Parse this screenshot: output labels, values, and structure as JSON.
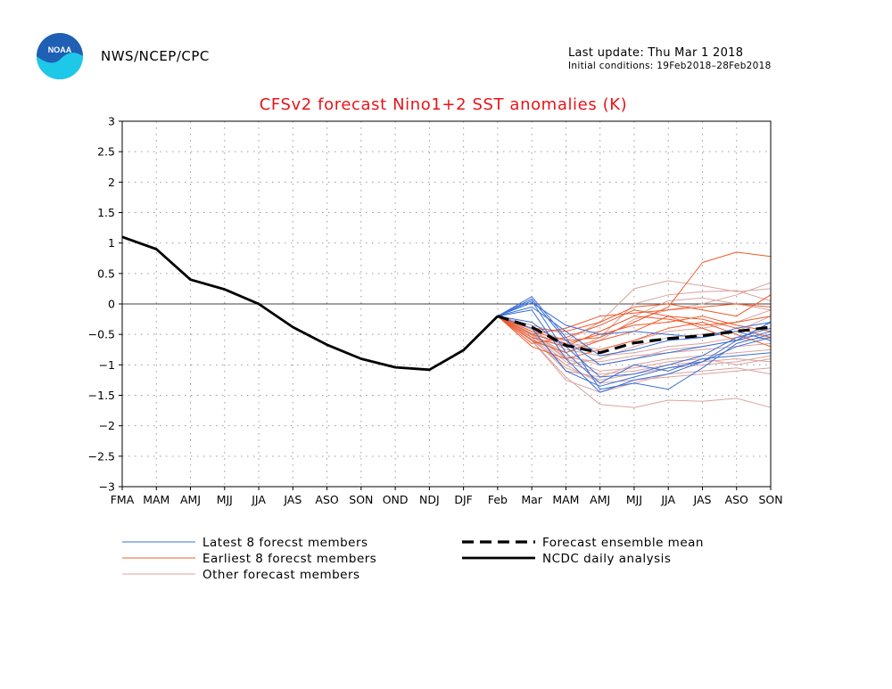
{
  "header": {
    "agency": "NWS/NCEP/CPC",
    "last_update": "Last update: Thu Mar 1 2018",
    "initial_conditions": "Initial conditions: 19Feb2018–28Feb2018",
    "logo_text": "NOAA"
  },
  "colors": {
    "title": "#e8141a",
    "latest": "#3a6fd8",
    "earliest": "#f05a2a",
    "other": "#d8a4a0",
    "mean": "#000000",
    "analysis": "#000000"
  },
  "chart_data": {
    "type": "line",
    "title": "CFSv2 forecast Nino1+2 SST anomalies (K)",
    "xlabel": "",
    "ylabel": "",
    "categories": [
      "FMA",
      "MAM",
      "AMJ",
      "MJJ",
      "JJA",
      "JAS",
      "ASO",
      "SON",
      "OND",
      "NDJ",
      "DJF",
      "Feb",
      "Mar",
      "MAM",
      "AMJ",
      "MJJ",
      "JJA",
      "JAS",
      "ASO",
      "SON"
    ],
    "ylim": [
      -3,
      3
    ],
    "yticks": [
      "3",
      "2.5",
      "2",
      "1.5",
      "1",
      "0.5",
      "0",
      "−0.5",
      "−1",
      "−1.5",
      "−2",
      "−2.5",
      "−3"
    ],
    "ytick_values": [
      3,
      2.5,
      2,
      1.5,
      1,
      0.5,
      0,
      -0.5,
      -1,
      -1.5,
      -2,
      -2.5,
      -3
    ],
    "grid": true,
    "legend": [
      {
        "label": "Latest 8 forecst members",
        "style": "latest"
      },
      {
        "label": "Earliest 8 forecst members",
        "style": "earliest"
      },
      {
        "label": "Other forecast members",
        "style": "other"
      },
      {
        "label": "Forecast ensemble mean",
        "style": "mean"
      },
      {
        "label": "NCDC daily analysis",
        "style": "analysis"
      }
    ],
    "analysis": {
      "name": "NCDC daily analysis",
      "x": [
        "FMA",
        "MAM",
        "AMJ",
        "MJJ",
        "JJA",
        "JAS",
        "ASO",
        "SON",
        "OND",
        "NDJ",
        "DJF",
        "Feb"
      ],
      "values": [
        1.1,
        0.9,
        0.4,
        0.24,
        0.0,
        -0.38,
        -0.67,
        -0.9,
        -1.04,
        -1.08,
        -0.76,
        -0.2
      ]
    },
    "ensemble_mean": {
      "name": "Forecast ensemble mean",
      "x": [
        "Feb",
        "Mar",
        "MAM",
        "AMJ",
        "MJJ",
        "JJA",
        "JAS",
        "ASO",
        "SON"
      ],
      "values": [
        -0.2,
        -0.38,
        -0.68,
        -0.8,
        -0.64,
        -0.57,
        -0.52,
        -0.45,
        -0.38
      ]
    },
    "members_x": [
      "Feb",
      "Mar",
      "MAM",
      "AMJ",
      "MJJ",
      "JJA",
      "JAS",
      "ASO",
      "SON"
    ],
    "latest_members": [
      [
        -0.2,
        0.12,
        -0.55,
        -1.4,
        -1.3,
        -1.4,
        -1.05,
        -0.65,
        -0.5
      ],
      [
        -0.2,
        0.05,
        -0.8,
        -1.3,
        -1.0,
        -1.1,
        -0.9,
        -0.85,
        -0.8
      ],
      [
        -0.2,
        -0.1,
        -0.9,
        -1.45,
        -1.25,
        -1.15,
        -0.95,
        -0.6,
        -0.3
      ],
      [
        -0.2,
        -0.3,
        -0.7,
        -1.2,
        -1.15,
        -1.0,
        -0.85,
        -0.55,
        -0.4
      ],
      [
        -0.2,
        0.08,
        -0.6,
        -1.0,
        -0.9,
        -0.8,
        -0.7,
        -0.6,
        -0.45
      ],
      [
        -0.2,
        -0.05,
        -0.45,
        -0.85,
        -0.75,
        -0.6,
        -0.55,
        -0.4,
        -0.3
      ],
      [
        -0.2,
        -0.4,
        -1.1,
        -1.35,
        -1.2,
        -1.05,
        -0.95,
        -0.7,
        -0.55
      ],
      [
        -0.2,
        0.02,
        -0.35,
        -0.5,
        -0.45,
        -0.5,
        -0.55,
        -0.45,
        -0.6
      ]
    ],
    "earliest_members": [
      [
        -0.2,
        -0.45,
        -0.6,
        -0.55,
        -0.3,
        -0.05,
        0.68,
        0.85,
        0.78
      ],
      [
        -0.2,
        -0.5,
        -0.4,
        -0.2,
        -0.15,
        -0.1,
        -0.05,
        0.0,
        -0.05
      ],
      [
        -0.2,
        -0.55,
        -0.7,
        -0.45,
        -0.2,
        -0.25,
        -0.35,
        -0.3,
        -0.2
      ],
      [
        -0.2,
        -0.6,
        -0.8,
        -0.6,
        -0.45,
        -0.2,
        -0.25,
        -0.4,
        -0.55
      ],
      [
        -0.2,
        -0.4,
        -0.45,
        -0.3,
        -0.05,
        0.0,
        -0.1,
        -0.2,
        0.15
      ],
      [
        -0.2,
        -0.7,
        -0.9,
        -0.75,
        -0.6,
        -0.4,
        -0.3,
        -0.5,
        -0.7
      ],
      [
        -0.2,
        -0.5,
        -0.65,
        -0.5,
        -0.35,
        -0.3,
        -0.2,
        -0.35,
        -0.45
      ],
      [
        -0.2,
        -0.65,
        -0.55,
        -0.35,
        -0.1,
        -0.2,
        -0.4,
        -0.6,
        -0.3
      ]
    ],
    "other_members": [
      [
        -0.2,
        -0.6,
        -1.2,
        -1.65,
        -1.7,
        -1.58,
        -1.6,
        -1.55,
        -1.7
      ],
      [
        -0.2,
        -0.55,
        -1.0,
        -1.3,
        -1.25,
        -1.2,
        -1.15,
        -1.1,
        -1.05
      ],
      [
        -0.2,
        -0.5,
        -0.9,
        -1.1,
        -1.05,
        -0.95,
        -0.9,
        -1.0,
        -0.9
      ],
      [
        -0.2,
        -0.45,
        -0.7,
        -0.6,
        -0.25,
        -0.1,
        0.0,
        0.15,
        0.35
      ],
      [
        -0.2,
        -0.4,
        -0.6,
        -0.3,
        0.25,
        0.38,
        0.3,
        0.2,
        0.25
      ],
      [
        -0.2,
        -0.5,
        -0.8,
        -0.55,
        0.0,
        0.15,
        0.2,
        0.22,
        0.05
      ],
      [
        -0.2,
        -0.6,
        -1.0,
        -0.9,
        -0.7,
        -0.55,
        -0.5,
        -0.45,
        -0.2
      ],
      [
        -0.2,
        -0.55,
        -1.1,
        -1.2,
        -1.0,
        -0.9,
        -0.85,
        -0.8,
        -0.75
      ],
      [
        -0.2,
        -0.48,
        -0.85,
        -1.0,
        -0.9,
        -0.75,
        -0.7,
        -0.6,
        -0.55
      ],
      [
        -0.2,
        -0.42,
        -0.65,
        -0.75,
        -0.6,
        -0.45,
        -0.4,
        -0.3,
        -0.1
      ],
      [
        -0.2,
        -0.52,
        -0.95,
        -1.15,
        -1.1,
        -1.0,
        -0.95,
        -0.9,
        -0.95
      ],
      [
        -0.2,
        -0.6,
        -1.25,
        -1.45,
        -1.3,
        -1.15,
        -1.1,
        -1.05,
        -1.15
      ],
      [
        -0.2,
        -0.35,
        -0.5,
        -0.45,
        -0.2,
        0.05,
        0.1,
        0.0,
        -0.1
      ],
      [
        -0.2,
        -0.45,
        -0.75,
        -0.85,
        -0.8,
        -0.7,
        -0.65,
        -0.55,
        -0.5
      ],
      [
        -0.2,
        -0.5,
        -0.88,
        -0.95,
        -0.85,
        -0.8,
        -0.75,
        -0.7,
        -0.65
      ],
      [
        -0.2,
        -0.58,
        -1.05,
        -1.25,
        -1.15,
        -1.05,
        -1.0,
        -0.95,
        -0.85
      ]
    ]
  }
}
